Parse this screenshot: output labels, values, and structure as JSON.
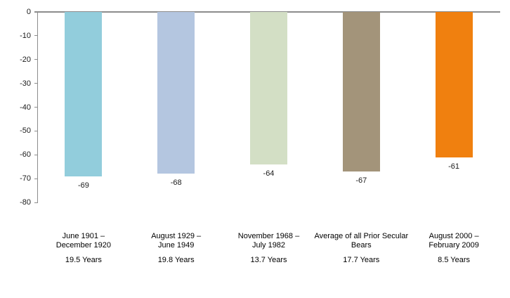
{
  "chart_data": {
    "type": "bar",
    "title": "",
    "xlabel": "",
    "ylabel": "",
    "categories": [
      "June 1901 – December 1920",
      "August 1929 – June 1949",
      "November 1968 – July 1982",
      "Average of all Prior Secular Bears",
      "August 2000 – February 2009"
    ],
    "category_label_lines": [
      [
        "June 1901 –",
        "December 1920"
      ],
      [
        "August 1929 –",
        "June 1949"
      ],
      [
        "November 1968 –",
        "July 1982"
      ],
      [
        "Average of all Prior Secular",
        "Bears"
      ],
      [
        "August 2000 –",
        "February 2009"
      ]
    ],
    "durations": [
      "19.5 Years",
      "19.8 Years",
      "13.7 Years",
      "17.7 Years",
      "8.5 Years"
    ],
    "values": [
      -69,
      -68,
      -64,
      -67,
      -61
    ],
    "data_labels": [
      "-69",
      "-68",
      "-64",
      "-67",
      "-61"
    ],
    "bar_colors": [
      "#92CDDC",
      "#B4C6E0",
      "#D3DFC5",
      "#A3947A",
      "#F0800F"
    ],
    "ylim": [
      -80,
      0
    ],
    "yticks": [
      "0",
      "-10",
      "-20",
      "-30",
      "-40",
      "-50",
      "-60",
      "-70",
      "-80"
    ],
    "grid": false,
    "legend": false,
    "axis_color": "#8c8c8c",
    "label_color": "#000000",
    "background": "#FFFFFF"
  }
}
